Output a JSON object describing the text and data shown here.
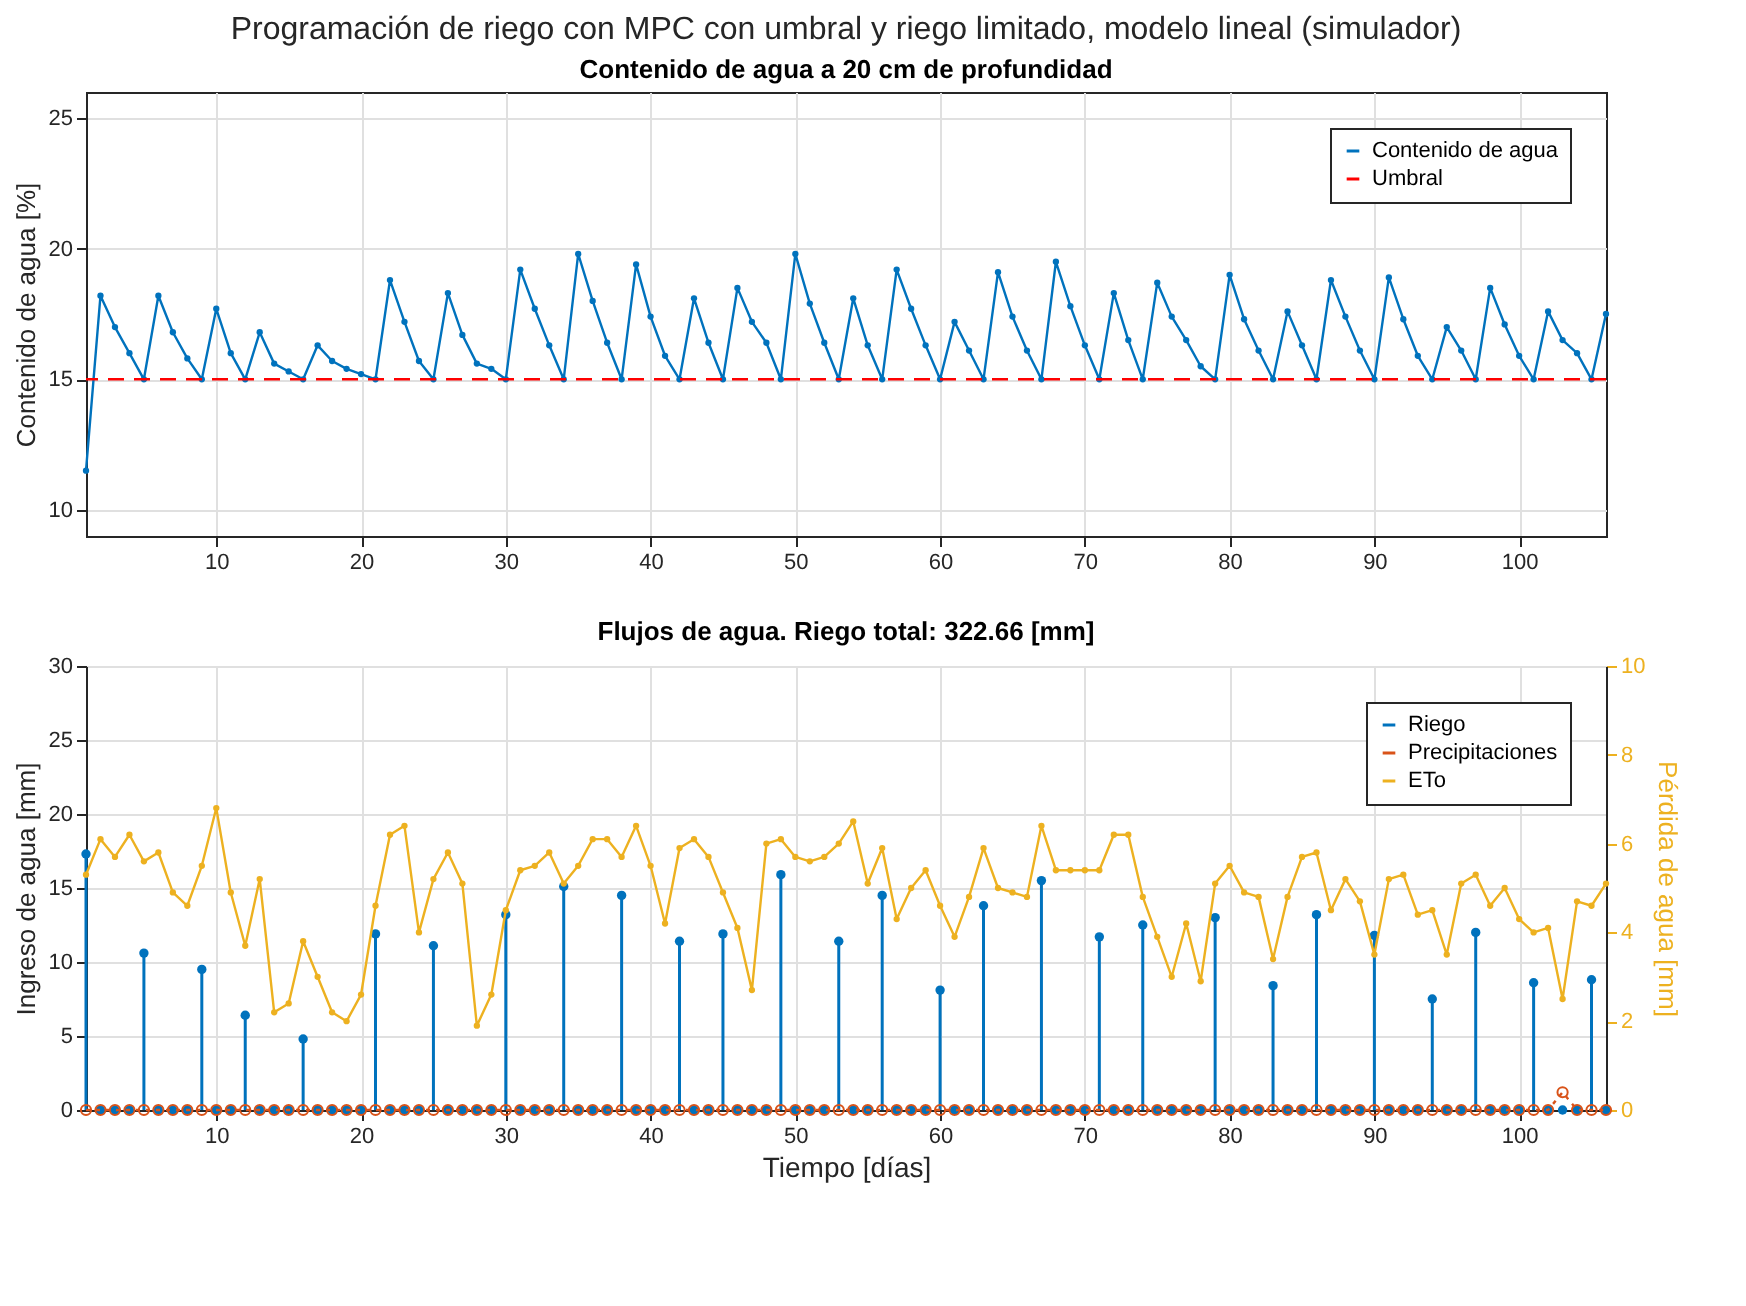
{
  "chart_data": [
    {
      "type": "line",
      "title": "Programación de riego con MPC con umbral y riego limitado, modelo lineal (simulador)",
      "subtitle": "Contenido de agua a 20 cm de profundidad",
      "ylabel": "Contenido de agua [%]",
      "x": [
        1,
        2,
        3,
        4,
        5,
        6,
        7,
        8,
        9,
        10,
        11,
        12,
        13,
        14,
        15,
        16,
        17,
        18,
        19,
        20,
        21,
        22,
        23,
        24,
        25,
        26,
        27,
        28,
        29,
        30,
        31,
        32,
        33,
        34,
        35,
        36,
        37,
        38,
        39,
        40,
        41,
        42,
        43,
        44,
        45,
        46,
        47,
        48,
        49,
        50,
        51,
        52,
        53,
        54,
        55,
        56,
        57,
        58,
        59,
        60,
        61,
        62,
        63,
        64,
        65,
        66,
        67,
        68,
        69,
        70,
        71,
        72,
        73,
        74,
        75,
        76,
        77,
        78,
        79,
        80,
        81,
        82,
        83,
        84,
        85,
        86,
        87,
        88,
        89,
        90,
        91,
        92,
        93,
        94,
        95,
        96,
        97,
        98,
        99,
        100,
        101,
        102,
        103,
        104,
        105,
        106
      ],
      "series": [
        {
          "name": "Contenido de agua",
          "color": "#0072bd",
          "values": [
            11.5,
            18.2,
            17.0,
            16.0,
            15,
            18.2,
            16.8,
            15.8,
            15,
            17.7,
            16.0,
            15,
            16.8,
            15.6,
            15.3,
            15,
            16.3,
            15.7,
            15.4,
            15.2,
            15,
            18.8,
            17.2,
            15.7,
            15,
            18.3,
            16.7,
            15.6,
            15.4,
            15,
            19.2,
            17.7,
            16.3,
            15,
            19.8,
            18.0,
            16.4,
            15,
            19.4,
            17.4,
            15.9,
            15,
            18.1,
            16.4,
            15,
            18.5,
            17.2,
            16.4,
            15,
            19.8,
            17.9,
            16.4,
            15,
            18.1,
            16.3,
            15,
            19.2,
            17.7,
            16.3,
            15,
            17.2,
            16.1,
            15,
            19.1,
            17.4,
            16.1,
            15,
            19.5,
            17.8,
            16.3,
            15,
            18.3,
            16.5,
            15,
            18.7,
            17.4,
            16.5,
            15.5,
            15,
            19.0,
            17.3,
            16.1,
            15,
            17.6,
            16.3,
            15,
            18.8,
            17.4,
            16.1,
            15,
            18.9,
            17.3,
            15.9,
            15,
            17.0,
            16.1,
            15,
            18.5,
            17.1,
            15.9,
            15,
            17.6,
            16.5,
            16.0,
            15,
            17.5
          ]
        }
      ],
      "ref_lines": [
        {
          "axis": "y",
          "value": 15,
          "label": "Umbral",
          "color": "#ff0000",
          "line_style": "dashed"
        }
      ],
      "xlim": [
        1,
        106
      ],
      "xticks": [
        10,
        20,
        30,
        40,
        50,
        60,
        70,
        80,
        90,
        100
      ],
      "ylim": [
        9,
        26
      ],
      "yticks": [
        10,
        15,
        20,
        25
      ],
      "grid": true,
      "legend": "top right",
      "marker": "circle",
      "line_style": "solid"
    },
    {
      "type": "line",
      "title": "Flujos de agua. Riego total: 322.66 [mm]",
      "xlabel": "Tiempo [días]",
      "ylabel": "Ingreso de agua [mm]",
      "y2label": "Pérdida de agua [mm]",
      "x": [
        1,
        2,
        3,
        4,
        5,
        6,
        7,
        8,
        9,
        10,
        11,
        12,
        13,
        14,
        15,
        16,
        17,
        18,
        19,
        20,
        21,
        22,
        23,
        24,
        25,
        26,
        27,
        28,
        29,
        30,
        31,
        32,
        33,
        34,
        35,
        36,
        37,
        38,
        39,
        40,
        41,
        42,
        43,
        44,
        45,
        46,
        47,
        48,
        49,
        50,
        51,
        52,
        53,
        54,
        55,
        56,
        57,
        58,
        59,
        60,
        61,
        62,
        63,
        64,
        65,
        66,
        67,
        68,
        69,
        70,
        71,
        72,
        73,
        74,
        75,
        76,
        77,
        78,
        79,
        80,
        81,
        82,
        83,
        84,
        85,
        86,
        87,
        88,
        89,
        90,
        91,
        92,
        93,
        94,
        95,
        96,
        97,
        98,
        99,
        100,
        101,
        102,
        103,
        104,
        105,
        106
      ],
      "series": [
        {
          "name": "Riego",
          "type": "lollipop",
          "color": "#0072bd",
          "marker": "circle",
          "values": [
            17.3,
            0,
            0,
            0,
            10.6,
            0,
            0,
            0,
            9.5,
            0,
            0,
            6.4,
            0,
            0,
            0,
            4.8,
            0,
            0,
            0,
            0,
            11.9,
            0,
            0,
            0,
            11.1,
            0,
            0,
            0,
            0,
            13.2,
            0,
            0,
            0,
            15.1,
            0,
            0,
            0,
            14.5,
            0,
            0,
            0,
            11.4,
            0,
            0,
            11.9,
            0,
            0,
            0,
            15.9,
            0,
            0,
            0,
            11.4,
            0,
            0,
            14.5,
            0,
            0,
            0,
            8.1,
            0,
            0,
            13.8,
            0,
            0,
            0,
            15.5,
            0,
            0,
            0,
            11.7,
            0,
            0,
            12.5,
            0,
            0,
            0,
            0,
            13.0,
            0,
            0,
            0,
            8.4,
            0,
            0,
            13.2,
            0,
            0,
            0,
            11.8,
            0,
            0,
            0,
            7.5,
            0,
            0,
            12.0,
            0,
            0,
            0,
            8.6,
            0,
            0,
            0,
            8.8,
            0
          ]
        },
        {
          "name": "Precipitaciones",
          "type": "line",
          "color": "#d95319",
          "marker": "circle",
          "line_style": "dotted",
          "values": [
            0,
            0,
            0,
            0,
            0,
            0,
            0,
            0,
            0,
            0,
            0,
            0,
            0,
            0,
            0,
            0,
            0,
            0,
            0,
            0,
            0,
            0,
            0,
            0,
            0,
            0,
            0,
            0,
            0,
            0,
            0,
            0,
            0,
            0,
            0,
            0,
            0,
            0,
            0,
            0,
            0,
            0,
            0,
            0,
            0,
            0,
            0,
            0,
            0,
            0,
            0,
            0,
            0,
            0,
            0,
            0,
            0,
            0,
            0,
            0,
            0,
            0,
            0,
            0,
            0,
            0,
            0,
            0,
            0,
            0,
            0,
            0,
            0,
            0,
            0,
            0,
            0,
            0,
            0,
            0,
            0,
            0,
            0,
            0,
            0,
            0,
            0,
            0,
            0,
            0,
            0,
            0,
            0,
            0,
            0,
            0,
            0,
            0,
            0,
            0,
            0,
            0,
            1.2,
            0,
            0,
            0
          ]
        },
        {
          "name": "ETo",
          "type": "line",
          "axis": "y2",
          "color": "#edb120",
          "marker": "circle",
          "line_style": "solid",
          "values": [
            5.3,
            6.1,
            5.7,
            6.2,
            5.6,
            5.8,
            4.9,
            4.6,
            5.5,
            6.8,
            4.9,
            3.7,
            5.2,
            2.2,
            2.4,
            3.8,
            3.0,
            2.2,
            2.0,
            2.6,
            4.6,
            6.2,
            6.4,
            4.0,
            5.2,
            5.8,
            5.1,
            1.9,
            2.6,
            4.5,
            5.4,
            5.5,
            5.8,
            5.1,
            5.5,
            6.1,
            6.1,
            5.7,
            6.4,
            5.5,
            4.2,
            5.9,
            6.1,
            5.7,
            4.9,
            4.1,
            2.7,
            6.0,
            6.1,
            5.7,
            5.6,
            5.7,
            6.0,
            6.5,
            5.1,
            5.9,
            4.3,
            5.0,
            5.4,
            4.6,
            3.9,
            4.8,
            5.9,
            5.0,
            4.9,
            4.8,
            6.4,
            5.4,
            5.4,
            5.4,
            5.4,
            6.2,
            6.2,
            4.8,
            3.9,
            3.0,
            4.2,
            2.9,
            5.1,
            5.5,
            4.9,
            4.8,
            3.4,
            4.8,
            5.7,
            5.8,
            4.5,
            5.2,
            4.7,
            3.5,
            5.2,
            5.3,
            4.4,
            4.5,
            3.5,
            5.1,
            5.3,
            4.6,
            5.0,
            4.3,
            4.0,
            4.1,
            2.5,
            4.7,
            4.6,
            5.1
          ]
        }
      ],
      "xlim": [
        1,
        106
      ],
      "xticks": [
        10,
        20,
        30,
        40,
        50,
        60,
        70,
        80,
        90,
        100
      ],
      "ylim": [
        0,
        30
      ],
      "yticks": [
        0,
        5,
        10,
        15,
        20,
        25,
        30
      ],
      "y2lim": [
        0,
        10
      ],
      "y2ticks": [
        0,
        2,
        4,
        6,
        8,
        10
      ],
      "grid": true,
      "legend": "top right"
    }
  ]
}
